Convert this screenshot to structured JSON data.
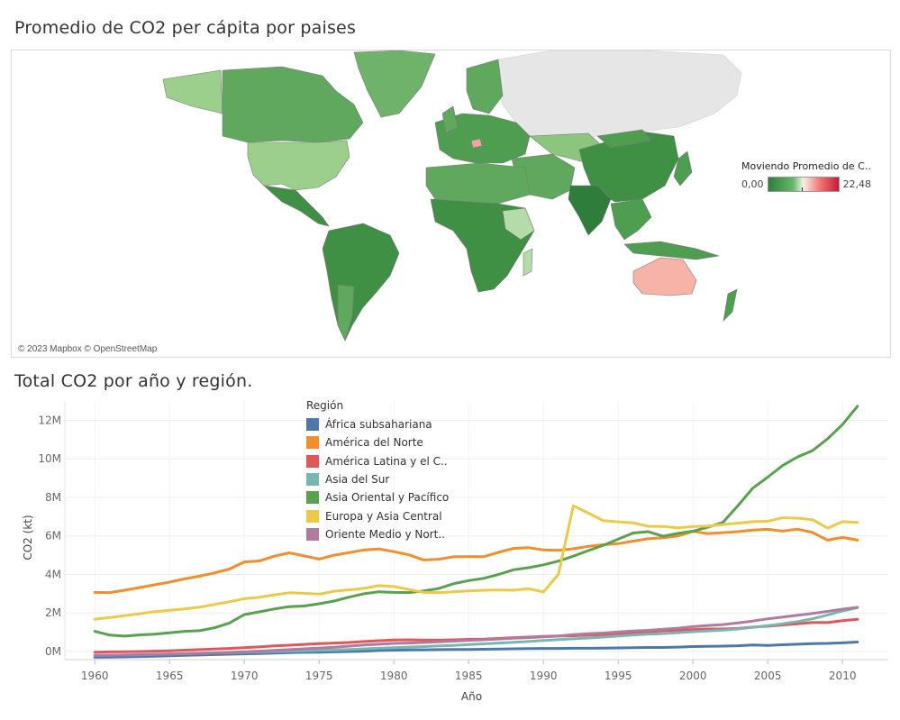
{
  "map": {
    "title": "Promedio de CO2 per cápita por paises",
    "attribution": "© 2023 Mapbox © OpenStreetMap",
    "legend": {
      "title": "Moviendo Promedio de C..",
      "min": "0,00",
      "max": "22,48"
    },
    "colors": {
      "low": "#2e7d3b",
      "mid": "#e8f4e4",
      "high": "#c61a3a",
      "nodata": "#e6e6e6"
    }
  },
  "line": {
    "title": "Total CO2 por año y región."
  },
  "chart_data": {
    "type": "line",
    "title": "Total CO2 por año y región.",
    "xlabel": "Año",
    "ylabel": "CO2 (kt)",
    "legend_title": "Región",
    "legend_position": "top-center",
    "grid": true,
    "xlim": [
      1960,
      2011
    ],
    "ylim": [
      0,
      13000000
    ],
    "x_ticks": [
      "1960",
      "1965",
      "1970",
      "1975",
      "1980",
      "1985",
      "1990",
      "1995",
      "2000",
      "2005",
      "2010"
    ],
    "y_ticks": [
      {
        "value": 0,
        "label": "0M"
      },
      {
        "value": 2000000,
        "label": "2M"
      },
      {
        "value": 4000000,
        "label": "4M"
      },
      {
        "value": 6000000,
        "label": "6M"
      },
      {
        "value": 8000000,
        "label": "8M"
      },
      {
        "value": 10000000,
        "label": "10M"
      },
      {
        "value": 12000000,
        "label": "12M"
      }
    ],
    "x": [
      1960,
      1961,
      1962,
      1963,
      1964,
      1965,
      1966,
      1967,
      1968,
      1969,
      1970,
      1971,
      1972,
      1973,
      1974,
      1975,
      1976,
      1977,
      1978,
      1979,
      1980,
      1981,
      1982,
      1983,
      1984,
      1985,
      1986,
      1987,
      1988,
      1989,
      1990,
      1991,
      1992,
      1993,
      1994,
      1995,
      1996,
      1997,
      1998,
      1999,
      2000,
      2001,
      2002,
      2003,
      2004,
      2005,
      2006,
      2007,
      2008,
      2009,
      2010,
      2011
    ],
    "series": [
      {
        "name": "África subsahariana",
        "color": "#4e79a7",
        "values": [
          -300000,
          -290000,
          -280000,
          -260000,
          -240000,
          -220000,
          -200000,
          -180000,
          -160000,
          -140000,
          -120000,
          -100000,
          -80000,
          -60000,
          -40000,
          -30000,
          -20000,
          0,
          20000,
          50000,
          70000,
          80000,
          90000,
          100000,
          110000,
          110000,
          120000,
          130000,
          140000,
          150000,
          160000,
          160000,
          170000,
          170000,
          180000,
          190000,
          200000,
          210000,
          210000,
          230000,
          260000,
          270000,
          280000,
          300000,
          340000,
          320000,
          350000,
          380000,
          410000,
          420000,
          450000,
          490000
        ]
      },
      {
        "name": "América del Norte",
        "color": "#f28e2b",
        "values": [
          3070000,
          3060000,
          3180000,
          3320000,
          3460000,
          3600000,
          3770000,
          3910000,
          4080000,
          4280000,
          4650000,
          4700000,
          4950000,
          5120000,
          4960000,
          4800000,
          5000000,
          5130000,
          5270000,
          5320000,
          5180000,
          5020000,
          4750000,
          4790000,
          4920000,
          4930000,
          4920000,
          5150000,
          5350000,
          5390000,
          5270000,
          5250000,
          5330000,
          5460000,
          5540000,
          5600000,
          5730000,
          5850000,
          5900000,
          6000000,
          6230000,
          6120000,
          6170000,
          6220000,
          6300000,
          6340000,
          6250000,
          6350000,
          6180000,
          5780000,
          5920000,
          5780000
        ]
      },
      {
        "name": "América Latina y el C..",
        "color": "#e15759",
        "values": [
          -30000,
          -20000,
          -10000,
          0,
          20000,
          40000,
          70000,
          100000,
          130000,
          160000,
          200000,
          240000,
          290000,
          330000,
          370000,
          410000,
          440000,
          470000,
          520000,
          560000,
          600000,
          610000,
          590000,
          590000,
          610000,
          630000,
          640000,
          680000,
          720000,
          750000,
          780000,
          810000,
          820000,
          850000,
          880000,
          920000,
          960000,
          1020000,
          1080000,
          1110000,
          1140000,
          1170000,
          1170000,
          1200000,
          1270000,
          1310000,
          1380000,
          1440000,
          1510000,
          1500000,
          1600000,
          1670000
        ]
      },
      {
        "name": "Asia del Sur",
        "color": "#76b7b2",
        "values": [
          -200000,
          -190000,
          -180000,
          -160000,
          -140000,
          -130000,
          -110000,
          -90000,
          -70000,
          -60000,
          -40000,
          -20000,
          0,
          20000,
          40000,
          60000,
          80000,
          110000,
          140000,
          170000,
          200000,
          230000,
          260000,
          290000,
          320000,
          360000,
          400000,
          440000,
          480000,
          520000,
          570000,
          620000,
          660000,
          700000,
          750000,
          800000,
          860000,
          900000,
          930000,
          980000,
          1030000,
          1070000,
          1110000,
          1170000,
          1260000,
          1340000,
          1440000,
          1560000,
          1700000,
          1900000,
          2100000,
          2280000
        ]
      },
      {
        "name": "Asia Oriental y Pacífico",
        "color": "#59a14f",
        "values": [
          1050000,
          850000,
          800000,
          860000,
          900000,
          970000,
          1050000,
          1080000,
          1230000,
          1480000,
          1920000,
          2060000,
          2210000,
          2330000,
          2360000,
          2480000,
          2620000,
          2820000,
          3000000,
          3100000,
          3070000,
          3060000,
          3150000,
          3270000,
          3520000,
          3680000,
          3800000,
          4000000,
          4240000,
          4350000,
          4500000,
          4690000,
          4950000,
          5240000,
          5510000,
          5830000,
          6150000,
          6220000,
          5980000,
          6130000,
          6250000,
          6450000,
          6700000,
          7560000,
          8480000,
          9050000,
          9650000,
          10100000,
          10430000,
          11040000,
          11780000,
          12730000
        ]
      },
      {
        "name": "Europa y Asia Central",
        "color": "#edc948",
        "values": [
          1680000,
          1760000,
          1860000,
          1960000,
          2070000,
          2140000,
          2210000,
          2300000,
          2440000,
          2580000,
          2740000,
          2810000,
          2940000,
          3050000,
          3020000,
          2980000,
          3130000,
          3200000,
          3280000,
          3420000,
          3370000,
          3220000,
          3070000,
          3060000,
          3100000,
          3150000,
          3180000,
          3190000,
          3180000,
          3260000,
          3090000,
          4000000,
          7560000,
          7190000,
          6790000,
          6730000,
          6680000,
          6500000,
          6490000,
          6420000,
          6480000,
          6510000,
          6590000,
          6660000,
          6740000,
          6760000,
          6940000,
          6920000,
          6840000,
          6400000,
          6740000,
          6700000
        ]
      },
      {
        "name": "Oriente Medio y Nort..",
        "color": "#b07aa1",
        "values": [
          -200000,
          -190000,
          -180000,
          -170000,
          -150000,
          -130000,
          -110000,
          -90000,
          -70000,
          -40000,
          -10000,
          20000,
          60000,
          100000,
          140000,
          180000,
          220000,
          280000,
          340000,
          380000,
          420000,
          440000,
          470000,
          500000,
          540000,
          580000,
          610000,
          650000,
          690000,
          720000,
          760000,
          800000,
          880000,
          920000,
          960000,
          1020000,
          1060000,
          1100000,
          1160000,
          1210000,
          1290000,
          1350000,
          1400000,
          1490000,
          1580000,
          1700000,
          1790000,
          1880000,
          1980000,
          2080000,
          2200000,
          2290000
        ]
      }
    ]
  }
}
